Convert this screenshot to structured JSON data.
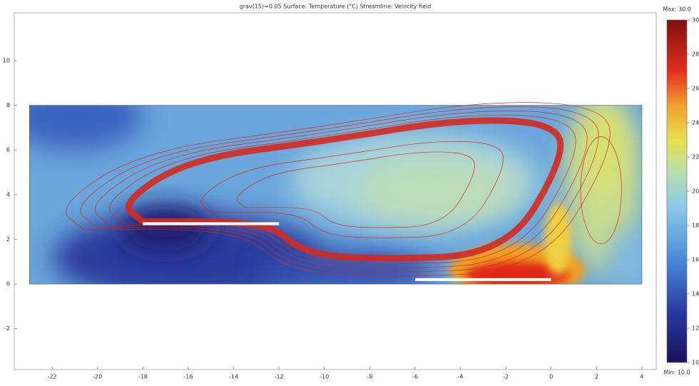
{
  "chart_data": {
    "type": "surface",
    "title": "grav(15)=0.05   Surface: Temperature (°C)   Streamline: Velocity field",
    "xlim": [
      -23.67,
      4.63
    ],
    "ylim": [
      -3.83,
      12.14
    ],
    "xticks": [
      -22,
      -20,
      -18,
      -16,
      -14,
      -12,
      -10,
      -8,
      -6,
      -4,
      -2,
      0,
      2,
      4
    ],
    "yticks": [
      -2,
      0,
      2,
      4,
      6,
      8,
      10
    ],
    "colorbar": {
      "max_label": "Max: 30.0",
      "min_label": "Min: 10.0",
      "lim": [
        10,
        30
      ],
      "ticks": [
        10,
        12,
        14,
        16,
        18,
        20,
        22,
        24,
        26,
        28,
        30
      ]
    },
    "streamline_color": "#d42a1e"
  }
}
